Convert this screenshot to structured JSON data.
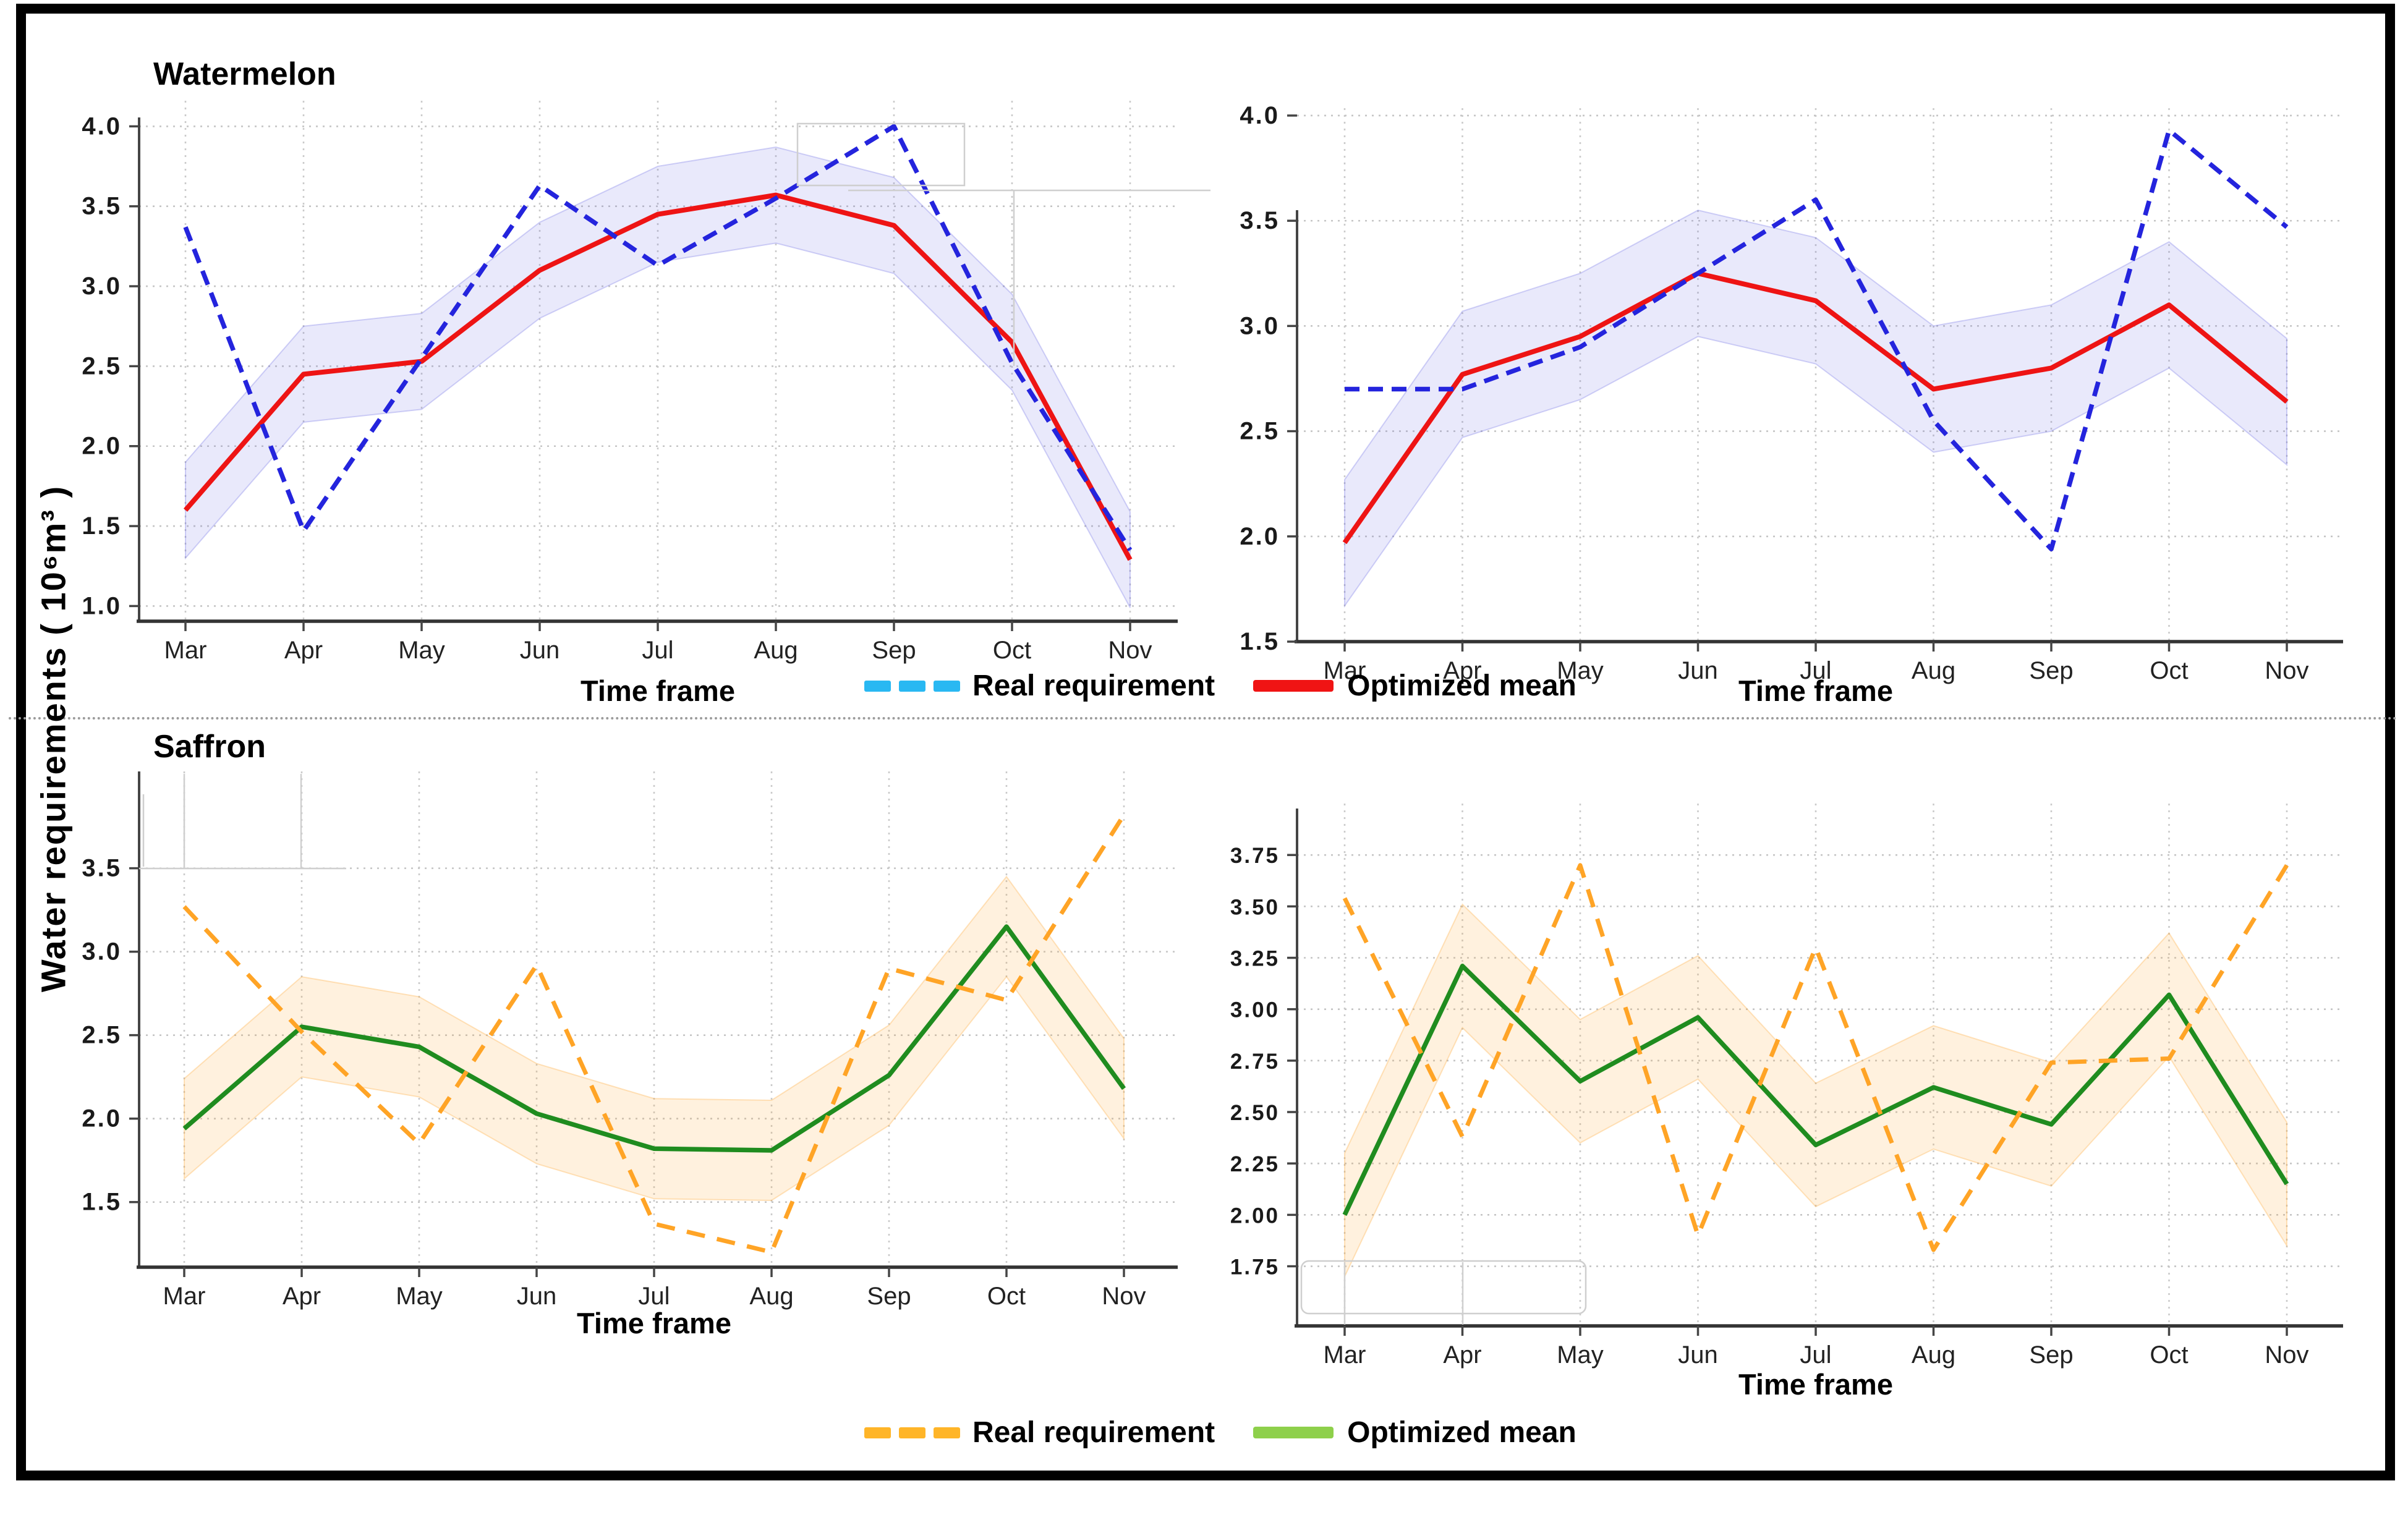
{
  "ylabel": "Water requirements ( 10⁶m³ )",
  "legends": {
    "top": {
      "items": [
        {
          "label": "Real requirement",
          "color": "#29b8f2",
          "style": "dashed"
        },
        {
          "label": "Optimized mean",
          "color": "#f01414",
          "style": "solid"
        }
      ]
    },
    "bottom": {
      "items": [
        {
          "label": "Real requirement",
          "color": "#ffb528",
          "style": "dashed"
        },
        {
          "label": "Optimized mean",
          "color": "#8ed04b",
          "style": "solid"
        }
      ]
    }
  },
  "chart_data": [
    {
      "id": "watermelon-real-vs-optimized-left",
      "type": "line",
      "title": "Watermelon",
      "xlabel": "Time frame",
      "categories": [
        "Mar",
        "Apr",
        "May",
        "Jun",
        "Jul",
        "Aug",
        "Sep",
        "Oct",
        "Nov"
      ],
      "yticks": [
        1.0,
        1.5,
        2.0,
        2.5,
        3.0,
        3.5,
        4.0
      ],
      "ytick_labels": [
        "1.0",
        "1.5",
        "2.0",
        "2.5",
        "3.0",
        "3.5",
        "4.0"
      ],
      "ylim": [
        0.905,
        4.16
      ],
      "grid": true,
      "series": [
        {
          "name": "Optimized mean",
          "style": "solid",
          "color": "#ee1414",
          "width": 8,
          "values": [
            1.6,
            2.45,
            2.53,
            3.1,
            3.45,
            3.57,
            3.38,
            2.65,
            1.29
          ],
          "band": 0.3,
          "band_fill": "rgba(110,110,228,0.15)",
          "band_edge": "rgba(110,110,228,0.30)"
        },
        {
          "name": "Real requirement",
          "style": "dashed",
          "color": "#2424dd",
          "width": 7.5,
          "values": [
            3.37,
            1.47,
            2.55,
            3.63,
            3.13,
            3.55,
            4.0,
            2.52,
            1.35
          ]
        }
      ]
    },
    {
      "id": "watermelon-real-vs-optimized-right",
      "type": "line",
      "title": null,
      "xlabel": "Time frame",
      "categories": [
        "Mar",
        "Apr",
        "May",
        "Jun",
        "Jul",
        "Aug",
        "Sep",
        "Oct",
        "Nov"
      ],
      "yticks": [
        1.5,
        2.0,
        2.5,
        3.0,
        3.5,
        4.0
      ],
      "ytick_labels": [
        "1.5",
        "2.0",
        "2.5",
        "3.0",
        "3.5",
        "4.0"
      ],
      "ylim": [
        1.5,
        4.035
      ],
      "grid": true,
      "series": [
        {
          "name": "Optimized mean",
          "style": "solid",
          "color": "#ee1414",
          "width": 8,
          "values": [
            1.97,
            2.77,
            2.95,
            3.25,
            3.12,
            2.7,
            2.8,
            3.1,
            2.64
          ],
          "band": 0.3,
          "band_fill": "rgba(110,110,228,0.15)",
          "band_edge": "rgba(110,110,228,0.30)"
        },
        {
          "name": "Real requirement",
          "style": "dashed",
          "color": "#2424dd",
          "width": 7.5,
          "values": [
            2.7,
            2.7,
            2.9,
            3.25,
            3.6,
            2.55,
            1.94,
            3.93,
            3.47
          ]
        }
      ]
    },
    {
      "id": "saffron-real-vs-optimized-left",
      "type": "line",
      "title": "Saffron",
      "xlabel": "Time frame",
      "categories": [
        "Mar",
        "Apr",
        "May",
        "Jun",
        "Jul",
        "Aug",
        "Sep",
        "Oct",
        "Nov"
      ],
      "yticks": [
        1.5,
        2.0,
        2.5,
        3.0,
        3.5
      ],
      "ytick_labels": [
        "1.5",
        "2.0",
        "2.5",
        "3.0",
        "3.5"
      ],
      "ylim": [
        1.11,
        4.08
      ],
      "grid": true,
      "series": [
        {
          "name": "Optimized mean",
          "style": "solid",
          "color": "#1f8c1f",
          "width": 7.5,
          "values": [
            1.94,
            2.55,
            2.43,
            2.03,
            1.82,
            1.81,
            2.26,
            3.15,
            2.18
          ],
          "band": 0.3,
          "band_fill": "rgba(255,170,60,0.17)",
          "band_edge": "rgba(255,170,60,0.32)"
        },
        {
          "name": "Real requirement",
          "style": "dashed",
          "color": "#ffa426",
          "width": 7,
          "values": [
            3.27,
            2.52,
            1.85,
            2.92,
            1.37,
            1.2,
            2.9,
            2.71,
            3.82
          ]
        }
      ]
    },
    {
      "id": "saffron-real-vs-optimized-right",
      "type": "line",
      "title": null,
      "xlabel": "Time frame",
      "categories": [
        "Mar",
        "Apr",
        "May",
        "Jun",
        "Jul",
        "Aug",
        "Sep",
        "Oct",
        "Nov"
      ],
      "yticks": [
        1.75,
        2.0,
        2.25,
        2.5,
        2.75,
        3.0,
        3.25,
        3.5,
        3.75
      ],
      "ytick_labels": [
        "1.75",
        "2.00",
        "2.25",
        "2.50",
        "2.75",
        "3.00",
        "3.25",
        "3.50",
        "3.75"
      ],
      "ylim": [
        1.46,
        4.0
      ],
      "grid": true,
      "series": [
        {
          "name": "Optimized mean",
          "style": "solid",
          "color": "#1f8c1f",
          "width": 7.5,
          "values": [
            2.0,
            3.21,
            2.65,
            2.96,
            2.34,
            2.62,
            2.44,
            3.07,
            2.15
          ],
          "band": 0.3,
          "band_fill": "rgba(255,170,60,0.17)",
          "band_edge": "rgba(255,170,60,0.32)"
        },
        {
          "name": "Real requirement",
          "style": "dashed",
          "color": "#ffa426",
          "width": 7,
          "values": [
            3.54,
            2.38,
            3.7,
            1.9,
            3.3,
            1.83,
            2.74,
            2.76,
            3.7
          ]
        }
      ]
    }
  ]
}
